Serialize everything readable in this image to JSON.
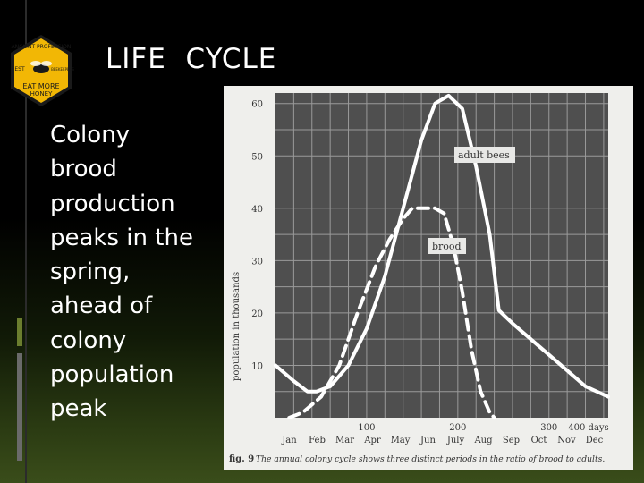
{
  "slide": {
    "title": "LIFE  CYCLE",
    "body": "Colony brood production peaks in the spring, ahead of colony population peak",
    "logo": {
      "top_text": "ANCIENT PROFESSION",
      "left_text": "EST",
      "right_text": "BEEKEEPERS",
      "bottom_text_1": "EAT MORE",
      "bottom_text_2": "HONEY",
      "colors": {
        "fill": "#f2b705",
        "ink": "#1a1a1a"
      }
    },
    "colors": {
      "background": "#000000",
      "text": "#ffffff",
      "accent": "#6b7d2e"
    }
  },
  "chart_data": {
    "type": "line",
    "ylabel": "population in thousands",
    "yticks": [
      10,
      20,
      30,
      40,
      50,
      60
    ],
    "ylim": [
      0,
      62
    ],
    "xticks": [
      100,
      200,
      300,
      400
    ],
    "xtick_suffix": "days",
    "xlim": [
      0,
      365
    ],
    "months": [
      "Jan",
      "Feb",
      "Mar",
      "Apr",
      "May",
      "Jun",
      "July",
      "Aug",
      "Sep",
      "Oct",
      "Nov",
      "Dec"
    ],
    "grid": true,
    "caption_label": "fig. 9",
    "caption": "The annual colony cycle shows three distinct periods in the ratio of brood to adults.",
    "series": [
      {
        "name": "adult bees",
        "style": "solid",
        "x": [
          0,
          20,
          35,
          45,
          60,
          80,
          100,
          120,
          140,
          160,
          175,
          190,
          205,
          220,
          235,
          245,
          260,
          280,
          300,
          320,
          340,
          365
        ],
        "y": [
          10,
          7,
          5,
          5,
          6,
          10,
          17,
          27,
          40,
          53,
          60,
          61.5,
          59,
          48,
          35,
          20.5,
          18,
          15,
          12,
          9,
          6,
          4
        ]
      },
      {
        "name": "brood",
        "style": "dashed",
        "x": [
          15,
          30,
          50,
          70,
          90,
          110,
          125,
          140,
          150,
          155,
          175,
          185,
          195,
          205,
          215,
          225,
          235,
          240
        ],
        "y": [
          0,
          1,
          4,
          10,
          20,
          29,
          34,
          38,
          40,
          40,
          40,
          39,
          33,
          24,
          13,
          5,
          1,
          0
        ]
      }
    ]
  }
}
